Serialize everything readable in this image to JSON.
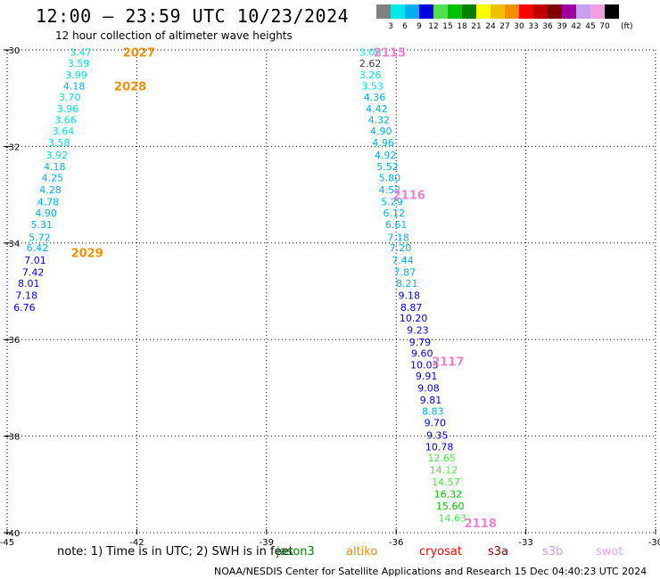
{
  "title": "12:00 – 23:59 UTC 10/23/2024",
  "subtitle": "12 hour collection of altimeter wave heights",
  "colorbar": {
    "labels": [
      "3",
      "6",
      "9",
      "12",
      "15",
      "18",
      "21",
      "24",
      "27",
      "30",
      "33",
      "36",
      "39",
      "42",
      "45",
      "70"
    ],
    "unit": "(ft)",
    "colors": [
      "#808080",
      "#00e8e8",
      "#00b0f0",
      "#0000e0",
      "#50e050",
      "#00c000",
      "#008000",
      "#ffff00",
      "#f0c000",
      "#f09000",
      "#ff0000",
      "#c00000",
      "#800000",
      "#a000a0",
      "#c8a0f0",
      "#f0a0e0",
      "#000000"
    ]
  },
  "map": {
    "lon_ticks": [
      "-45",
      "-42",
      "-39",
      "-36",
      "-33",
      "-30"
    ],
    "lat_ticks": [
      "-30",
      "-32",
      "-34",
      "-36",
      "-38",
      "-40"
    ]
  },
  "tracks": [
    {
      "passes": [
        {
          "label": "2027",
          "color": "#f09000",
          "lon": -41.95,
          "lat": -30.05
        },
        {
          "label": "2028",
          "color": "#f09000",
          "lon": -42.15,
          "lat": -30.75
        },
        {
          "label": "2029",
          "color": "#f09000",
          "lon": -43.15,
          "lat": -34.2
        }
      ],
      "points": [
        {
          "v": "3.47",
          "c": "#00e0e0",
          "lon": -43.3,
          "lat": -30.05
        },
        {
          "v": "3.59",
          "c": "#00e0e0",
          "lon": -43.35,
          "lat": -30.28
        },
        {
          "v": "3.99",
          "c": "#00e0e0",
          "lon": -43.4,
          "lat": -30.52
        },
        {
          "v": "4.18",
          "c": "#00b0f0",
          "lon": -43.45,
          "lat": -30.75
        },
        {
          "v": "3.70",
          "c": "#00e0e0",
          "lon": -43.55,
          "lat": -30.98
        },
        {
          "v": "3.96",
          "c": "#00e0e0",
          "lon": -43.6,
          "lat": -31.22
        },
        {
          "v": "3.66",
          "c": "#00e0e0",
          "lon": -43.65,
          "lat": -31.45
        },
        {
          "v": "3.64",
          "c": "#00e0e0",
          "lon": -43.7,
          "lat": -31.68
        },
        {
          "v": "3.58",
          "c": "#00e0e0",
          "lon": -43.8,
          "lat": -31.92
        },
        {
          "v": "3.92",
          "c": "#00e0e0",
          "lon": -43.85,
          "lat": -32.18
        },
        {
          "v": "4.18",
          "c": "#00b0f0",
          "lon": -43.9,
          "lat": -32.42
        },
        {
          "v": "4.25",
          "c": "#00b0f0",
          "lon": -43.95,
          "lat": -32.65
        },
        {
          "v": "4.28",
          "c": "#00b0f0",
          "lon": -44.0,
          "lat": -32.9
        },
        {
          "v": "4.78",
          "c": "#00b0f0",
          "lon": -44.05,
          "lat": -33.15
        },
        {
          "v": "4.90",
          "c": "#00b0f0",
          "lon": -44.1,
          "lat": -33.38
        },
        {
          "v": "5.31",
          "c": "#00b0f0",
          "lon": -44.2,
          "lat": -33.62
        },
        {
          "v": "5.72",
          "c": "#00b0f0",
          "lon": -44.25,
          "lat": -33.88
        },
        {
          "v": "6.42",
          "c": "#00b0f0",
          "lon": -44.3,
          "lat": -34.1
        },
        {
          "v": "7.01",
          "c": "#0000e0",
          "lon": -44.35,
          "lat": -34.35
        },
        {
          "v": "7.42",
          "c": "#0000e0",
          "lon": -44.4,
          "lat": -34.6
        },
        {
          "v": "8.01",
          "c": "#0000e0",
          "lon": -44.5,
          "lat": -34.83
        },
        {
          "v": "7.18",
          "c": "#0000e0",
          "lon": -44.55,
          "lat": -35.08
        },
        {
          "v": "6.76",
          "c": "#0000e0",
          "lon": -44.6,
          "lat": -35.33
        }
      ]
    },
    {
      "passes": [
        {
          "label": "2115",
          "color": "#f080d0",
          "lon": -36.15,
          "lat": -30.05
        },
        {
          "label": "2116",
          "color": "#f080d0",
          "lon": -35.7,
          "lat": -33.0
        },
        {
          "label": "2117",
          "color": "#f080d0",
          "lon": -34.8,
          "lat": -36.45
        },
        {
          "label": "2118",
          "color": "#f080d0",
          "lon": -34.05,
          "lat": -39.8
        }
      ],
      "points": [
        {
          "v": "3.06",
          "c": "#00e0e0",
          "lon": -36.6,
          "lat": -30.05
        },
        {
          "v": "2.62",
          "c": "#404040",
          "lon": -36.6,
          "lat": -30.28
        },
        {
          "v": "3.26",
          "c": "#00e0e0",
          "lon": -36.6,
          "lat": -30.52
        },
        {
          "v": "3.53",
          "c": "#00e0e0",
          "lon": -36.55,
          "lat": -30.75
        },
        {
          "v": "4.36",
          "c": "#00b0f0",
          "lon": -36.5,
          "lat": -30.98
        },
        {
          "v": "4.42",
          "c": "#00b0f0",
          "lon": -36.45,
          "lat": -31.22
        },
        {
          "v": "4.32",
          "c": "#00b0f0",
          "lon": -36.4,
          "lat": -31.45
        },
        {
          "v": "4.90",
          "c": "#00b0f0",
          "lon": -36.35,
          "lat": -31.68
        },
        {
          "v": "4.96",
          "c": "#00b0f0",
          "lon": -36.3,
          "lat": -31.92
        },
        {
          "v": "4.92",
          "c": "#00b0f0",
          "lon": -36.25,
          "lat": -32.18
        },
        {
          "v": "5.52",
          "c": "#00b0f0",
          "lon": -36.2,
          "lat": -32.42
        },
        {
          "v": "5.80",
          "c": "#00b0f0",
          "lon": -36.15,
          "lat": -32.65
        },
        {
          "v": "4.52",
          "c": "#00b0f0",
          "lon": -36.15,
          "lat": -32.9
        },
        {
          "v": "5.29",
          "c": "#00b0f0",
          "lon": -36.1,
          "lat": -33.15
        },
        {
          "v": "6.12",
          "c": "#00b0f0",
          "lon": -36.05,
          "lat": -33.38
        },
        {
          "v": "6.61",
          "c": "#00b0f0",
          "lon": -36.0,
          "lat": -33.62
        },
        {
          "v": "7.18",
          "c": "#00b0f0",
          "lon": -35.95,
          "lat": -33.88
        },
        {
          "v": "7.20",
          "c": "#00b0f0",
          "lon": -35.9,
          "lat": -34.1
        },
        {
          "v": "7.44",
          "c": "#00b0f0",
          "lon": -35.85,
          "lat": -34.35
        },
        {
          "v": "7.87",
          "c": "#00b0f0",
          "lon": -35.8,
          "lat": -34.6
        },
        {
          "v": "8.21",
          "c": "#00b0f0",
          "lon": -35.75,
          "lat": -34.83
        },
        {
          "v": "9.18",
          "c": "#0000e0",
          "lon": -35.7,
          "lat": -35.08
        },
        {
          "v": "8.87",
          "c": "#0000e0",
          "lon": -35.65,
          "lat": -35.33
        },
        {
          "v": "10.20",
          "c": "#0000e0",
          "lon": -35.6,
          "lat": -35.55
        },
        {
          "v": "9.23",
          "c": "#0000e0",
          "lon": -35.5,
          "lat": -35.8
        },
        {
          "v": "9.79",
          "c": "#0000e0",
          "lon": -35.45,
          "lat": -36.05
        },
        {
          "v": "9.60",
          "c": "#0000e0",
          "lon": -35.4,
          "lat": -36.28
        },
        {
          "v": "10.03",
          "c": "#0000e0",
          "lon": -35.35,
          "lat": -36.52
        },
        {
          "v": "9.91",
          "c": "#0000e0",
          "lon": -35.3,
          "lat": -36.75
        },
        {
          "v": "9.08",
          "c": "#0000e0",
          "lon": -35.25,
          "lat": -37.0
        },
        {
          "v": "9.81",
          "c": "#0000e0",
          "lon": -35.2,
          "lat": -37.25
        },
        {
          "v": "8.83",
          "c": "#00b0f0",
          "lon": -35.15,
          "lat": -37.48
        },
        {
          "v": "9.70",
          "c": "#0000e0",
          "lon": -35.1,
          "lat": -37.72
        },
        {
          "v": "9.35",
          "c": "#0000e0",
          "lon": -35.05,
          "lat": -37.98
        },
        {
          "v": "10.78",
          "c": "#0000e0",
          "lon": -35.0,
          "lat": -38.22
        },
        {
          "v": "12.65",
          "c": "#50e050",
          "lon": -34.95,
          "lat": -38.45
        },
        {
          "v": "14.12",
          "c": "#50e050",
          "lon": -34.9,
          "lat": -38.7
        },
        {
          "v": "14.57",
          "c": "#50e050",
          "lon": -34.85,
          "lat": -38.95
        },
        {
          "v": "16.32",
          "c": "#00c000",
          "lon": -34.8,
          "lat": -39.2
        },
        {
          "v": "15.60",
          "c": "#00c000",
          "lon": -34.75,
          "lat": -39.45
        },
        {
          "v": "14.63",
          "c": "#50e050",
          "lon": -34.7,
          "lat": -39.7
        }
      ]
    }
  ],
  "note": "note:  1) Time is in UTC;  2) SWH is in feet",
  "legend": [
    {
      "label": "jason3",
      "color": "#008000"
    },
    {
      "label": "altiko",
      "color": "#f09000"
    },
    {
      "label": "cryosat",
      "color": "#ff0000"
    },
    {
      "label": "s3a",
      "color": "#800000"
    },
    {
      "label": "s3b",
      "color": "#c8a0f0"
    },
    {
      "label": "swot",
      "color": "#f0a0e0"
    }
  ],
  "credit": "NOAA/NESDIS Center for Satellite Applications and Research    15 Dec 04:40:23 UTC 2024"
}
